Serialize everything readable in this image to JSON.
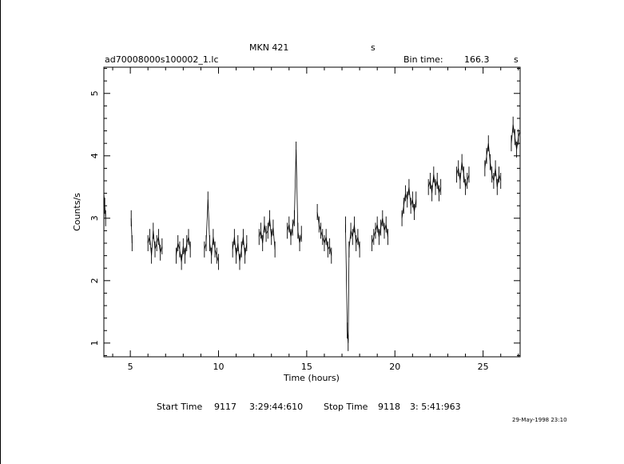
{
  "header": {
    "source": "MKN 421",
    "source_suffix": "s",
    "filename": "ad70008000s100002_1.lc",
    "bin_label": "Bin time:",
    "bin_value": "166.3",
    "bin_unit": "s"
  },
  "footer": {
    "start_label": "Start Time",
    "start_day": "9117",
    "start_time": "3:29:44:610",
    "stop_label": "Stop Time",
    "stop_day": "9118",
    "stop_time": "3: 5:41:963",
    "timestamp": "29-May-1998 23:10"
  },
  "chart_data": {
    "type": "line",
    "title": "MKN 421",
    "xlabel": "Time (hours)",
    "ylabel": "Counts/s",
    "xlim": [
      3.5,
      27.1
    ],
    "ylim": [
      0.78,
      5.42
    ],
    "xticks": [
      5,
      10,
      15,
      20,
      25
    ],
    "yticks": [
      1,
      2,
      3,
      4,
      5
    ],
    "grid": false,
    "legend": "none",
    "series": [
      {
        "segments": [
          {
            "x": [
              3.5,
              3.55,
              3.6
            ],
            "y": [
              3.4,
              3.2,
              3.0
            ]
          },
          {
            "x": [
              5.05,
              5.1
            ],
            "y": [
              3.0,
              2.6
            ]
          },
          {
            "x": [
              6.0,
              6.1,
              6.2,
              6.3,
              6.4,
              6.5,
              6.6,
              6.7,
              6.8
            ],
            "y": [
              2.6,
              2.7,
              2.4,
              2.8,
              2.5,
              2.6,
              2.7,
              2.45,
              2.55
            ]
          },
          {
            "x": [
              7.6,
              7.7,
              7.8,
              7.9,
              8.0,
              8.1,
              8.2,
              8.3,
              8.4
            ],
            "y": [
              2.4,
              2.6,
              2.5,
              2.3,
              2.55,
              2.4,
              2.6,
              2.7,
              2.5
            ]
          },
          {
            "x": [
              9.2,
              9.3,
              9.4,
              9.5,
              9.6,
              9.7,
              9.8,
              9.9,
              10.0
            ],
            "y": [
              2.5,
              2.6,
              3.3,
              2.6,
              2.4,
              2.7,
              2.5,
              2.4,
              2.3
            ]
          },
          {
            "x": [
              10.8,
              10.9,
              11.0,
              11.1,
              11.2,
              11.3,
              11.4,
              11.5,
              11.6
            ],
            "y": [
              2.5,
              2.7,
              2.4,
              2.6,
              2.3,
              2.5,
              2.7,
              2.4,
              2.6
            ]
          },
          {
            "x": [
              12.3,
              12.4,
              12.5,
              12.6,
              12.7,
              12.8,
              12.9,
              13.0,
              13.1,
              13.2
            ],
            "y": [
              2.7,
              2.8,
              2.6,
              2.9,
              2.75,
              2.8,
              3.0,
              2.7,
              2.85,
              2.5
            ]
          },
          {
            "x": [
              13.9,
              14.0,
              14.1,
              14.2,
              14.3,
              14.4,
              14.5,
              14.6,
              14.7
            ],
            "y": [
              2.8,
              2.9,
              2.7,
              2.85,
              3.0,
              4.1,
              2.8,
              2.6,
              2.75
            ]
          },
          {
            "x": [
              15.6,
              15.7,
              15.8,
              15.9,
              16.0,
              16.1,
              16.2,
              16.3,
              16.4
            ],
            "y": [
              3.1,
              2.9,
              2.8,
              2.7,
              2.6,
              2.7,
              2.5,
              2.55,
              2.4
            ]
          },
          {
            "x": [
              17.2,
              17.3,
              17.35,
              17.4,
              17.5,
              17.6,
              17.7,
              17.8,
              17.9,
              18.0
            ],
            "y": [
              2.9,
              1.2,
              1.0,
              2.5,
              2.8,
              2.7,
              2.9,
              2.6,
              2.7,
              2.5
            ]
          },
          {
            "x": [
              18.7,
              18.8,
              18.9,
              19.0,
              19.1,
              19.2,
              19.3,
              19.4,
              19.5,
              19.6
            ],
            "y": [
              2.6,
              2.7,
              2.8,
              2.9,
              2.7,
              2.85,
              3.0,
              2.8,
              2.9,
              2.7
            ]
          },
          {
            "x": [
              20.4,
              20.5,
              20.6,
              20.7,
              20.8,
              20.9,
              21.0,
              21.1,
              21.2
            ],
            "y": [
              3.0,
              3.2,
              3.4,
              3.3,
              3.5,
              3.2,
              3.3,
              3.1,
              3.3
            ]
          },
          {
            "x": [
              21.9,
              22.0,
              22.1,
              22.2,
              22.3,
              22.4,
              22.5,
              22.6
            ],
            "y": [
              3.5,
              3.6,
              3.4,
              3.7,
              3.5,
              3.6,
              3.4,
              3.5
            ]
          },
          {
            "x": [
              23.5,
              23.6,
              23.7,
              23.8,
              23.9,
              24.0,
              24.1,
              24.2
            ],
            "y": [
              3.7,
              3.8,
              3.6,
              3.9,
              3.7,
              3.5,
              3.6,
              3.7
            ]
          },
          {
            "x": [
              25.1,
              25.2,
              25.3,
              25.4,
              25.5,
              25.6,
              25.7,
              25.8,
              25.9,
              26.0
            ],
            "y": [
              3.8,
              4.0,
              4.2,
              3.9,
              3.7,
              3.6,
              3.8,
              3.5,
              3.7,
              3.6
            ]
          },
          {
            "x": [
              26.6,
              26.7,
              26.8,
              26.9,
              27.0,
              27.1
            ],
            "y": [
              4.2,
              4.5,
              4.3,
              4.1,
              4.3,
              4.4
            ]
          }
        ]
      }
    ]
  }
}
